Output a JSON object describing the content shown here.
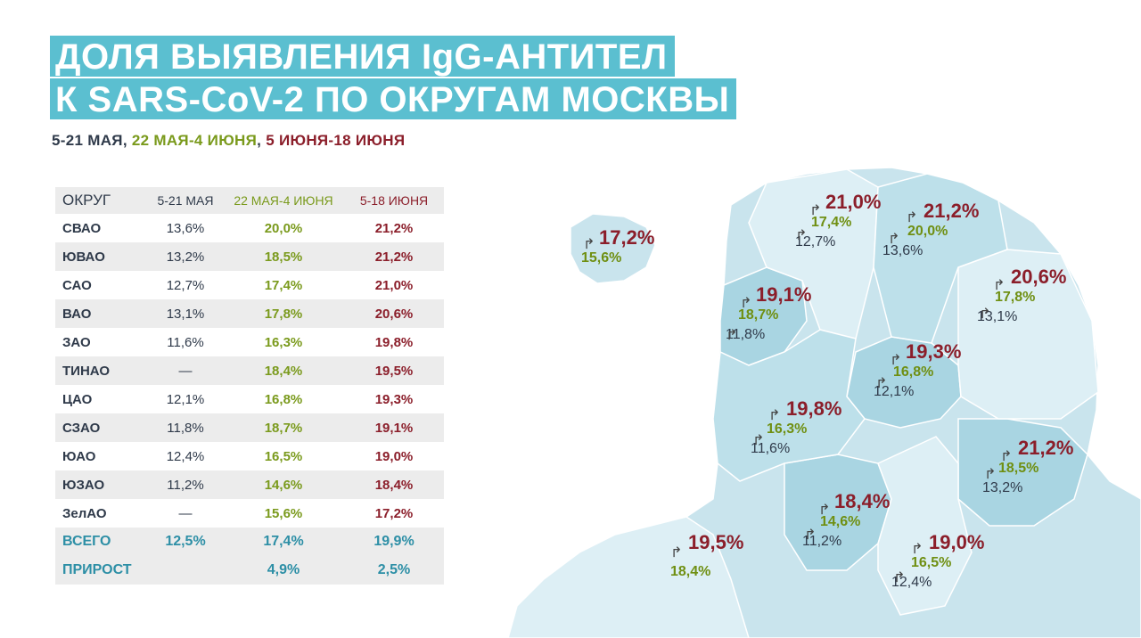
{
  "title": {
    "line1": "ДОЛЯ ВЫЯВЛЕНИЯ IgG-АНТИТЕЛ",
    "line2": "К SARS-CoV-2 ПО ОКРУГАМ МОСКВЫ"
  },
  "subtitle": {
    "period1": "5-21 МАЯ",
    "sep1": ", ",
    "period2": "22 МАЯ-4 ИЮНЯ",
    "sep2": ", ",
    "period3": "5 ИЮНЯ-18 ИЮНЯ"
  },
  "colors": {
    "accent": "#5bbfd0",
    "period1": "#2f3a4a",
    "period2": "#7a9a1c",
    "period3": "#8b1e2a",
    "total": "#2d8fa6",
    "map_fill": "#c6e3ec"
  },
  "table": {
    "headers": [
      "ОКРУГ",
      "5-21 МАЯ",
      "22 МАЯ-4 ИЮНЯ",
      "5-18 ИЮНЯ"
    ],
    "rows": [
      {
        "name": "СВАО",
        "p1": "13,6%",
        "p2": "20,0%",
        "p3": "21,2%"
      },
      {
        "name": "ЮВАО",
        "p1": "13,2%",
        "p2": "18,5%",
        "p3": "21,2%"
      },
      {
        "name": "САО",
        "p1": "12,7%",
        "p2": "17,4%",
        "p3": "21,0%"
      },
      {
        "name": "ВАО",
        "p1": "13,1%",
        "p2": "17,8%",
        "p3": "20,6%"
      },
      {
        "name": "ЗАО",
        "p1": "11,6%",
        "p2": "16,3%",
        "p3": "19,8%"
      },
      {
        "name": "ТИНАО",
        "p1": "—",
        "p2": "18,4%",
        "p3": "19,5%"
      },
      {
        "name": "ЦАО",
        "p1": "12,1%",
        "p2": "16,8%",
        "p3": "19,3%"
      },
      {
        "name": "СЗАО",
        "p1": "11,8%",
        "p2": "18,7%",
        "p3": "19,1%"
      },
      {
        "name": "ЮАО",
        "p1": "12,4%",
        "p2": "16,5%",
        "p3": "19,0%"
      },
      {
        "name": "ЮЗАО",
        "p1": "11,2%",
        "p2": "14,6%",
        "p3": "18,4%"
      },
      {
        "name": "ЗелАО",
        "p1": "—",
        "p2": "15,6%",
        "p3": "17,2%"
      }
    ],
    "total": {
      "name": "ВСЕГО",
      "p1": "12,5%",
      "p2": "17,4%",
      "p3": "19,9%"
    },
    "growth": {
      "name": "ПРИРОСТ",
      "p1": "",
      "p2": "4,9%",
      "p3": "2,5%"
    }
  },
  "map_labels": [
    {
      "id": "zelao",
      "r": "17,2%",
      "g": "15,6%",
      "b": ""
    },
    {
      "id": "sao",
      "r": "21,0%",
      "g": "17,4%",
      "b": "12,7%"
    },
    {
      "id": "svao",
      "r": "21,2%",
      "g": "20,0%",
      "b": "13,6%"
    },
    {
      "id": "vao",
      "r": "20,6%",
      "g": "17,8%",
      "b": "13,1%"
    },
    {
      "id": "szao",
      "r": "19,1%",
      "g": "18,7%",
      "b": "11,8%"
    },
    {
      "id": "cao",
      "r": "19,3%",
      "g": "16,8%",
      "b": "12,1%"
    },
    {
      "id": "zao",
      "r": "19,8%",
      "g": "16,3%",
      "b": "11,6%"
    },
    {
      "id": "yuvao",
      "r": "21,2%",
      "g": "18,5%",
      "b": "13,2%"
    },
    {
      "id": "yuzao",
      "r": "18,4%",
      "g": "14,6%",
      "b": "11,2%"
    },
    {
      "id": "tinao",
      "r": "19,5%",
      "g": "18,4%",
      "b": ""
    },
    {
      "id": "yuao",
      "r": "19,0%",
      "g": "16,5%",
      "b": "12,4%"
    }
  ]
}
